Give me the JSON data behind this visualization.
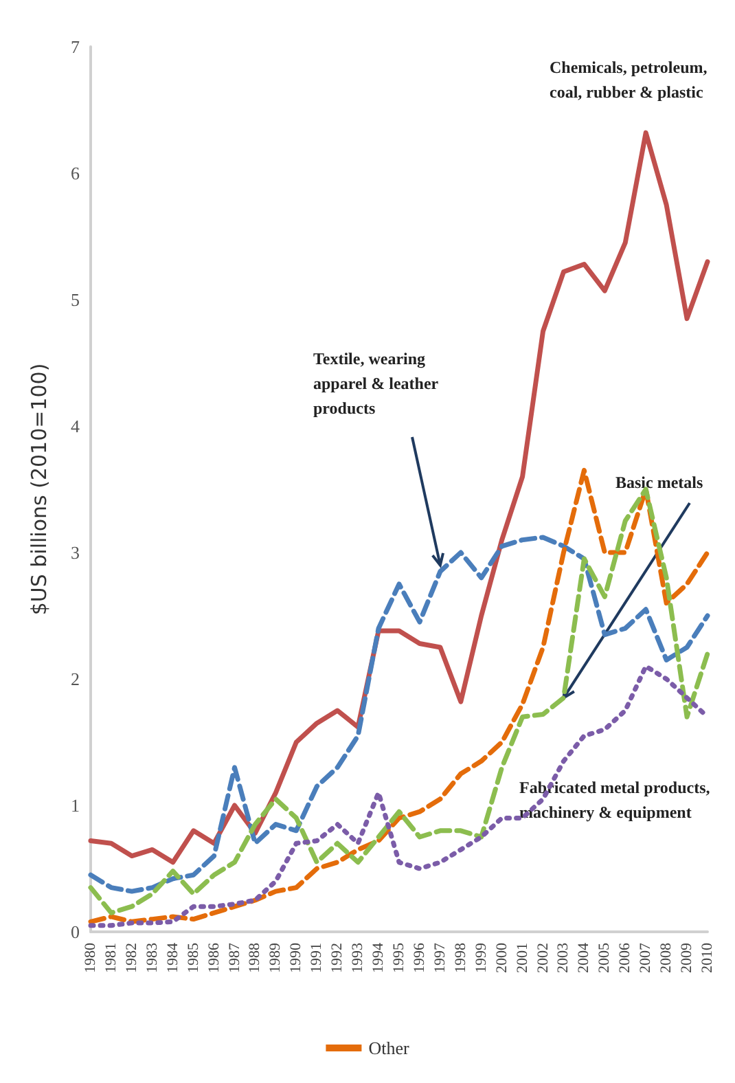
{
  "chart_data": {
    "type": "line",
    "ylabel": "$US billions (2010=100)",
    "categories": [
      "1980",
      "1981",
      "1982",
      "1983",
      "1984",
      "1985",
      "1986",
      "1987",
      "1988",
      "1989",
      "1990",
      "1991",
      "1992",
      "1993",
      "1994",
      "1995",
      "1996",
      "1997",
      "1998",
      "1999",
      "2000",
      "2001",
      "2002",
      "2003",
      "2004",
      "2005",
      "2006",
      "2007",
      "2008",
      "2009",
      "2010"
    ],
    "ylim": [
      0,
      7
    ],
    "yticks": [
      0,
      1,
      2,
      3,
      4,
      5,
      6,
      7
    ],
    "grid": false,
    "legend": "bottom",
    "marker": "none",
    "series": [
      {
        "color": "#c0504d",
        "line_style": "solid",
        "values": [
          0.72,
          0.7,
          0.6,
          0.65,
          0.55,
          0.8,
          0.7,
          1.0,
          0.78,
          1.1,
          1.5,
          1.65,
          1.75,
          1.62,
          2.38,
          2.38,
          2.28,
          2.25,
          1.82,
          2.5,
          3.1,
          3.6,
          4.75,
          5.22,
          5.28,
          5.07,
          5.45,
          6.32,
          5.75,
          4.85,
          5.3
        ]
      },
      {
        "color": "#4a7ebb",
        "line_style": "dashed",
        "values": [
          0.45,
          0.35,
          0.32,
          0.35,
          0.42,
          0.45,
          0.6,
          1.3,
          0.7,
          0.85,
          0.8,
          1.15,
          1.3,
          1.55,
          2.4,
          2.75,
          2.45,
          2.85,
          3.0,
          2.8,
          3.05,
          3.1,
          3.12,
          3.05,
          2.95,
          2.35,
          2.4,
          2.55,
          2.15,
          2.25,
          2.5
        ]
      },
      {
        "name": "Other",
        "color": "#e46c0a",
        "line_style": "dashed",
        "values": [
          0.08,
          0.12,
          0.08,
          0.1,
          0.12,
          0.1,
          0.15,
          0.2,
          0.25,
          0.32,
          0.35,
          0.5,
          0.55,
          0.65,
          0.72,
          0.9,
          0.95,
          1.05,
          1.25,
          1.35,
          1.5,
          1.8,
          2.25,
          3.0,
          3.65,
          3.0,
          3.0,
          3.5,
          2.6,
          2.75,
          3.0
        ]
      },
      {
        "color": "#8cbd4f",
        "line_style": "dashed",
        "values": [
          0.35,
          0.15,
          0.2,
          0.3,
          0.48,
          0.3,
          0.45,
          0.55,
          0.85,
          1.05,
          0.9,
          0.55,
          0.7,
          0.55,
          0.75,
          0.95,
          0.75,
          0.8,
          0.8,
          0.75,
          1.3,
          1.7,
          1.72,
          1.85,
          2.95,
          2.65,
          3.25,
          3.5,
          2.8,
          1.7,
          2.2
        ]
      },
      {
        "color": "#7b5ca8",
        "line_style": "dotted",
        "values": [
          0.05,
          0.05,
          0.07,
          0.07,
          0.08,
          0.2,
          0.2,
          0.22,
          0.25,
          0.4,
          0.7,
          0.72,
          0.85,
          0.7,
          1.1,
          0.55,
          0.5,
          0.55,
          0.65,
          0.75,
          0.9,
          0.9,
          1.05,
          1.35,
          1.55,
          1.6,
          1.75,
          2.1,
          2.0,
          1.85,
          1.7
        ]
      }
    ],
    "annotations": [
      "Chemicals, petroleum,\ncoal, rubber & plastic",
      {
        "text": "Textile, wearing\napparel & leather\nproducts",
        "x": "1997",
        "y": 2.9
      },
      {
        "text": "Basic metals",
        "x": "2003",
        "y": 1.85
      },
      "Fabricated metal products,\nmachinery & equipment"
    ]
  }
}
